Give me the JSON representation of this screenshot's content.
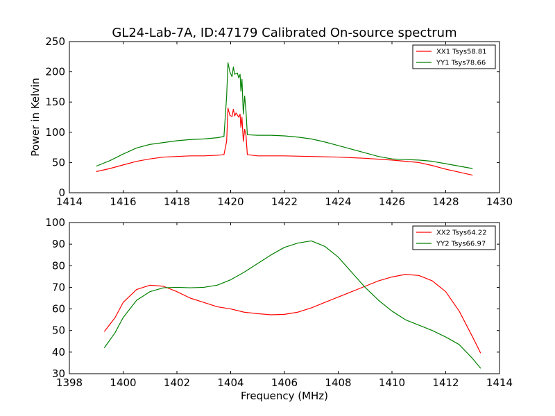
{
  "figure": {
    "title": "GL24-Lab-7A, ID:47179 Calibrated On-source spectrum"
  },
  "chart_data": [
    {
      "type": "line",
      "title": "GL24-Lab-7A, ID:47179 Calibrated On-source spectrum",
      "xlabel": "",
      "ylabel": "Power in Kelvin",
      "xlim": [
        1414,
        1430
      ],
      "ylim": [
        0,
        250
      ],
      "xticks": [
        1414,
        1416,
        1418,
        1420,
        1422,
        1424,
        1426,
        1428,
        1430
      ],
      "yticks": [
        0,
        50,
        100,
        150,
        200,
        250
      ],
      "grid": false,
      "legend_position": "top-right",
      "series": [
        {
          "name": "XX1 Tsys58.81",
          "color": "#ff0000",
          "points": [
            [
              1415.0,
              35
            ],
            [
              1415.5,
              40
            ],
            [
              1416.0,
              46
            ],
            [
              1416.5,
              52
            ],
            [
              1417.0,
              56
            ],
            [
              1417.5,
              59
            ],
            [
              1418.0,
              60
            ],
            [
              1418.5,
              61
            ],
            [
              1419.0,
              61
            ],
            [
              1419.5,
              62
            ],
            [
              1419.75,
              63
            ],
            [
              1419.85,
              85
            ],
            [
              1419.9,
              140
            ],
            [
              1419.97,
              128
            ],
            [
              1420.05,
              126
            ],
            [
              1420.1,
              138
            ],
            [
              1420.15,
              127
            ],
            [
              1420.2,
              132
            ],
            [
              1420.3,
              125
            ],
            [
              1420.35,
              130
            ],
            [
              1420.38,
              108
            ],
            [
              1420.42,
              125
            ],
            [
              1420.47,
              85
            ],
            [
              1420.52,
              105
            ],
            [
              1420.57,
              95
            ],
            [
              1420.62,
              63
            ],
            [
              1421.0,
              61
            ],
            [
              1422.0,
              61
            ],
            [
              1423.0,
              60
            ],
            [
              1424.0,
              59
            ],
            [
              1425.0,
              57
            ],
            [
              1426.0,
              54
            ],
            [
              1426.5,
              52
            ],
            [
              1427.0,
              50
            ],
            [
              1427.5,
              45
            ],
            [
              1428.0,
              39
            ],
            [
              1428.5,
              34
            ],
            [
              1429.0,
              29
            ]
          ]
        },
        {
          "name": "YY1 Tsys78.66",
          "color": "#008000",
          "points": [
            [
              1415.0,
              44
            ],
            [
              1415.5,
              53
            ],
            [
              1416.0,
              64
            ],
            [
              1416.5,
              74
            ],
            [
              1417.0,
              80
            ],
            [
              1417.5,
              83
            ],
            [
              1418.0,
              86
            ],
            [
              1418.5,
              88
            ],
            [
              1419.0,
              89
            ],
            [
              1419.5,
              91
            ],
            [
              1419.75,
              93
            ],
            [
              1419.85,
              160
            ],
            [
              1419.9,
              215
            ],
            [
              1419.97,
              200
            ],
            [
              1420.05,
              192
            ],
            [
              1420.1,
              208
            ],
            [
              1420.15,
              196
            ],
            [
              1420.25,
              198
            ],
            [
              1420.3,
              190
            ],
            [
              1420.35,
              196
            ],
            [
              1420.38,
              168
            ],
            [
              1420.42,
              188
            ],
            [
              1420.47,
              130
            ],
            [
              1420.52,
              160
            ],
            [
              1420.57,
              135
            ],
            [
              1420.62,
              96
            ],
            [
              1421.0,
              95
            ],
            [
              1421.5,
              95
            ],
            [
              1422.0,
              94
            ],
            [
              1422.5,
              92
            ],
            [
              1423.0,
              89
            ],
            [
              1423.5,
              84
            ],
            [
              1424.0,
              78
            ],
            [
              1424.5,
              72
            ],
            [
              1425.0,
              66
            ],
            [
              1425.5,
              60
            ],
            [
              1426.0,
              56
            ],
            [
              1426.5,
              55
            ],
            [
              1427.0,
              54
            ],
            [
              1427.5,
              52
            ],
            [
              1428.0,
              48
            ],
            [
              1428.5,
              44
            ],
            [
              1429.0,
              40
            ]
          ]
        }
      ]
    },
    {
      "type": "line",
      "title": "",
      "xlabel": "Frequency (MHz)",
      "ylabel": "",
      "xlim": [
        1398,
        1414
      ],
      "ylim": [
        30,
        100
      ],
      "xticks": [
        1398,
        1400,
        1402,
        1404,
        1406,
        1408,
        1410,
        1412,
        1414
      ],
      "yticks": [
        30,
        40,
        50,
        60,
        70,
        80,
        90,
        100
      ],
      "grid": false,
      "legend_position": "top-right",
      "series": [
        {
          "name": "XX2 Tsys64.22",
          "color": "#ff0000",
          "points": [
            [
              1399.3,
              49.5
            ],
            [
              1399.7,
              56
            ],
            [
              1400.0,
              63
            ],
            [
              1400.5,
              69
            ],
            [
              1401.0,
              71
            ],
            [
              1401.5,
              70.5
            ],
            [
              1402.0,
              68
            ],
            [
              1402.5,
              65
            ],
            [
              1403.0,
              63
            ],
            [
              1403.5,
              61
            ],
            [
              1404.0,
              60
            ],
            [
              1404.5,
              58.5
            ],
            [
              1405.0,
              57.8
            ],
            [
              1405.5,
              57.3
            ],
            [
              1406.0,
              57.5
            ],
            [
              1406.5,
              58.5
            ],
            [
              1407.0,
              60.5
            ],
            [
              1407.5,
              63
            ],
            [
              1408.0,
              65.5
            ],
            [
              1408.5,
              68
            ],
            [
              1409.0,
              70.5
            ],
            [
              1409.5,
              73
            ],
            [
              1410.0,
              74.8
            ],
            [
              1410.5,
              76
            ],
            [
              1411.0,
              75.5
            ],
            [
              1411.5,
              73
            ],
            [
              1412.0,
              68
            ],
            [
              1412.5,
              59
            ],
            [
              1413.0,
              47
            ],
            [
              1413.3,
              39.5
            ]
          ]
        },
        {
          "name": "YY2 Tsys66.97",
          "color": "#008000",
          "points": [
            [
              1399.3,
              42
            ],
            [
              1399.7,
              49
            ],
            [
              1400.0,
              56
            ],
            [
              1400.5,
              64
            ],
            [
              1401.0,
              68
            ],
            [
              1401.5,
              69.8
            ],
            [
              1402.0,
              70
            ],
            [
              1402.5,
              69.8
            ],
            [
              1403.0,
              70
            ],
            [
              1403.5,
              71
            ],
            [
              1404.0,
              73.5
            ],
            [
              1404.5,
              77
            ],
            [
              1405.0,
              81
            ],
            [
              1405.5,
              85
            ],
            [
              1406.0,
              88.5
            ],
            [
              1406.5,
              90.5
            ],
            [
              1407.0,
              91.5
            ],
            [
              1407.5,
              89
            ],
            [
              1408.0,
              84
            ],
            [
              1408.5,
              77
            ],
            [
              1409.0,
              70
            ],
            [
              1409.5,
              64
            ],
            [
              1410.0,
              59
            ],
            [
              1410.5,
              55
            ],
            [
              1411.0,
              52.5
            ],
            [
              1411.5,
              50
            ],
            [
              1412.0,
              47
            ],
            [
              1412.5,
              43.5
            ],
            [
              1413.0,
              37
            ],
            [
              1413.3,
              32.5
            ]
          ]
        }
      ]
    }
  ]
}
